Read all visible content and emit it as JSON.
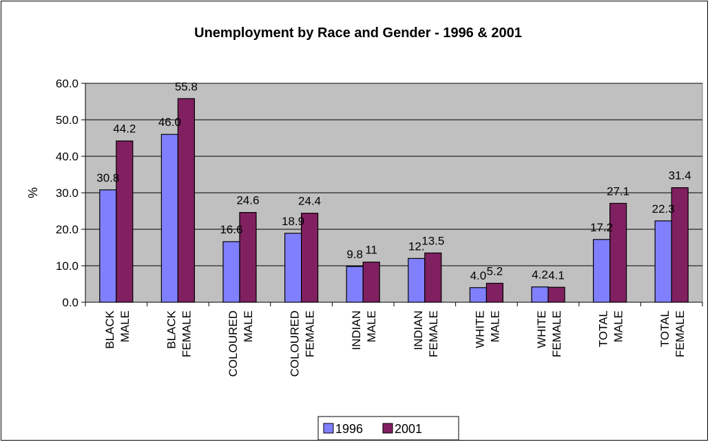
{
  "chart_data": {
    "type": "bar",
    "title": "Unemployment by Race and Gender - 1996 & 2001",
    "xlabel": "",
    "ylabel": "%",
    "ylim": [
      0,
      60
    ],
    "yticks": [
      "0.0",
      "10.0",
      "20.0",
      "30.0",
      "40.0",
      "50.0",
      "60.0"
    ],
    "grid": true,
    "legend_position": "bottom",
    "plot_background": "#C0C0C0",
    "categories": [
      [
        "BLACK",
        "MALE"
      ],
      [
        "BLACK",
        "FEMALE"
      ],
      [
        "COLOURED",
        "MALE"
      ],
      [
        "COLOURED",
        "FEMALE"
      ],
      [
        "INDIAN",
        "MALE"
      ],
      [
        "INDIAN",
        "FEMALE"
      ],
      [
        "WHITE",
        "MALE"
      ],
      [
        "WHITE",
        "FEMALE"
      ],
      [
        "TOTAL",
        "MALE"
      ],
      [
        "TOTAL",
        "FEMALE"
      ]
    ],
    "series": [
      {
        "name": "1996",
        "color": "#8080FF",
        "values": [
          30.8,
          46.0,
          16.6,
          18.9,
          9.8,
          12.0,
          4.0,
          4.2,
          17.2,
          22.3
        ],
        "labels": [
          "30.8",
          "46.0",
          "16.6",
          "18.9",
          "9.8",
          "12.",
          "4.0",
          "4.2",
          "17.2",
          "22.3"
        ]
      },
      {
        "name": "2001",
        "color": "#802060",
        "values": [
          44.2,
          55.8,
          24.6,
          24.4,
          11,
          13.5,
          5.2,
          4.1,
          27.1,
          31.4
        ],
        "labels": [
          "44.2",
          "55.8",
          "24.6",
          "24.4",
          "11",
          "13.5",
          "5.2",
          "4.1",
          "27.1",
          "31.4"
        ]
      }
    ]
  }
}
